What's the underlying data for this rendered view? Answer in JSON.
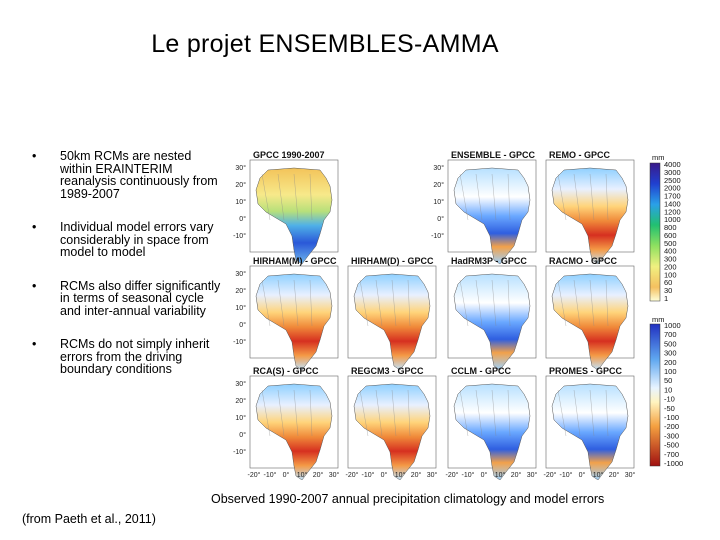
{
  "slide": {
    "title": "Le projet ENSEMBLES-AMMA",
    "bullets": [
      "50km RCMs are nested within ERAINTERIM reanalysis continuously from 1989-2007",
      "Individual model errors vary considerably in space from model to model",
      "RCMs also differ significantly in terms of seasonal cycle and inter-annual variability",
      "RCMs do not simply inherit errors from the driving boundary conditions"
    ],
    "bullet_symbol": "•",
    "caption": "Observed 1990-2007 annual precipitation climatology and model errors",
    "source": "(from Paeth et al., 2011)"
  },
  "figure": {
    "panel_titles": [
      "GPCC 1990-2007",
      "ENSEMBLE - GPCC",
      "REMO - GPCC",
      "HIRHAM(M) - GPCC",
      "HIRHAM(D) - GPCC",
      "HadRM3P - GPCC",
      "RACMO - GPCC",
      "RCA(S) - GPCC",
      "REGCM3 - GPCC",
      "CCLM - GPCC",
      "PROMES - GPCC"
    ],
    "lat_ticks": [
      "30°",
      "20°",
      "10°",
      "0°",
      "-10°"
    ],
    "lon_ticks": [
      "-20°",
      "-10°",
      "0°",
      "10°",
      "20°",
      "30°"
    ],
    "colorbar_top": {
      "unit": "mm",
      "labels": [
        "4000",
        "3000",
        "2500",
        "2000",
        "1700",
        "1400",
        "1200",
        "1000",
        "800",
        "600",
        "500",
        "400",
        "300",
        "200",
        "100",
        "60",
        "30",
        "1"
      ]
    },
    "colorbar_bottom": {
      "unit": "mm",
      "labels": [
        "1000",
        "700",
        "500",
        "300",
        "200",
        "100",
        "50",
        "10",
        "-10",
        "-50",
        "-100",
        "-200",
        "-300",
        "-500",
        "-700",
        "-1000"
      ]
    }
  }
}
